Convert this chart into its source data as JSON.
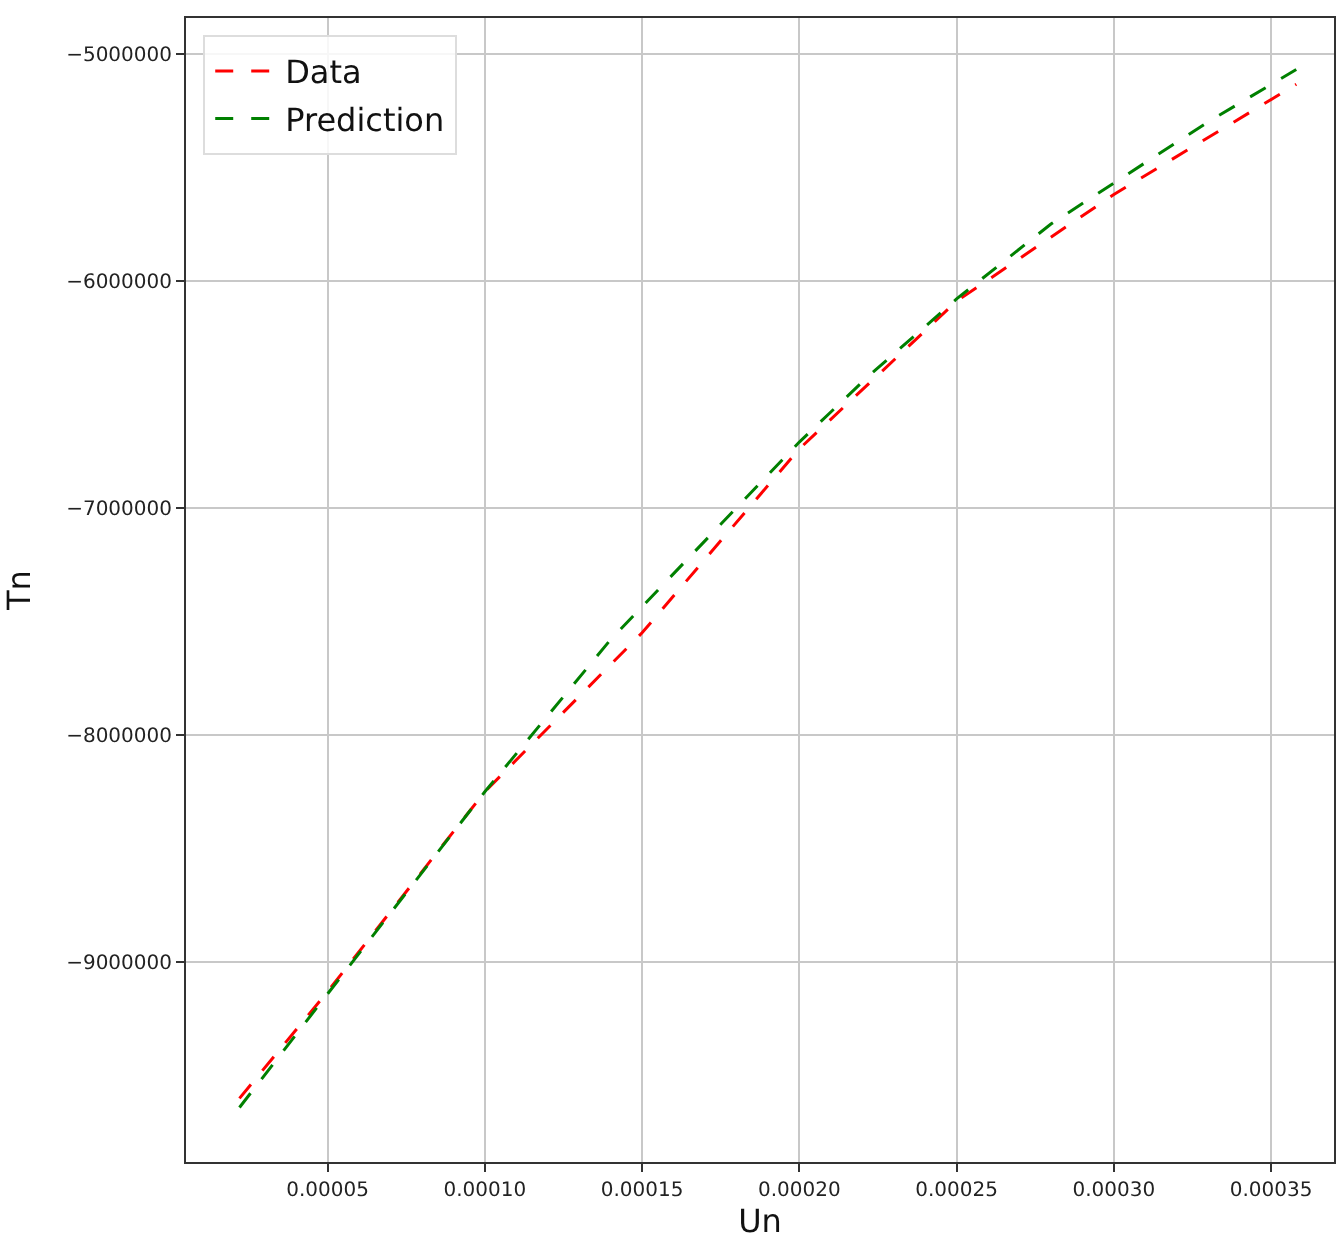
{
  "chart_data": {
    "type": "line",
    "xlabel": "Un",
    "ylabel": "Tn",
    "series": [
      {
        "name": "Data",
        "color": "#ff0000",
        "x": [
          2.2e-05,
          5e-05,
          0.0001,
          0.00015,
          0.0002,
          0.00025,
          0.0003,
          0.000358
        ],
        "values": [
          -9600000,
          -9130000,
          -8250000,
          -7550000,
          -6740000,
          -6090000,
          -5620000,
          -5135000
        ]
      },
      {
        "name": "Prediction",
        "color": "#008000",
        "x": [
          2.2e-05,
          5e-05,
          0.0001,
          0.00014,
          0.0002,
          0.000222,
          0.00025,
          0.00028,
          0.00033,
          0.000358
        ],
        "values": [
          -9640000,
          -9140000,
          -8250000,
          -7580000,
          -6710000,
          -6420000,
          -6080000,
          -5750000,
          -5300000,
          -5070000
        ]
      }
    ],
    "xlim": [
      5e-06,
      0.00037
    ],
    "xticks": [
      {
        "value": 5e-05,
        "label": "0.00005"
      },
      {
        "value": 0.0001,
        "label": "0.00010"
      },
      {
        "value": 0.00015,
        "label": "0.00015"
      },
      {
        "value": 0.0002,
        "label": "0.00020"
      },
      {
        "value": 0.00025,
        "label": "0.00025"
      },
      {
        "value": 0.0003,
        "label": "0.00030"
      },
      {
        "value": 0.00035,
        "label": "0.00035"
      }
    ],
    "ylim": [
      -9880000,
      -4843000
    ],
    "yticks": [
      {
        "value": -9000000,
        "label": "−9000000"
      },
      {
        "value": -8000000,
        "label": "−8000000"
      },
      {
        "value": -7000000,
        "label": "−7000000"
      },
      {
        "value": -6000000,
        "label": "−6000000"
      },
      {
        "value": -5000000,
        "label": "−5000000"
      }
    ],
    "grid": true,
    "legend": "top left",
    "marker": "none",
    "line_style": "dashed"
  }
}
